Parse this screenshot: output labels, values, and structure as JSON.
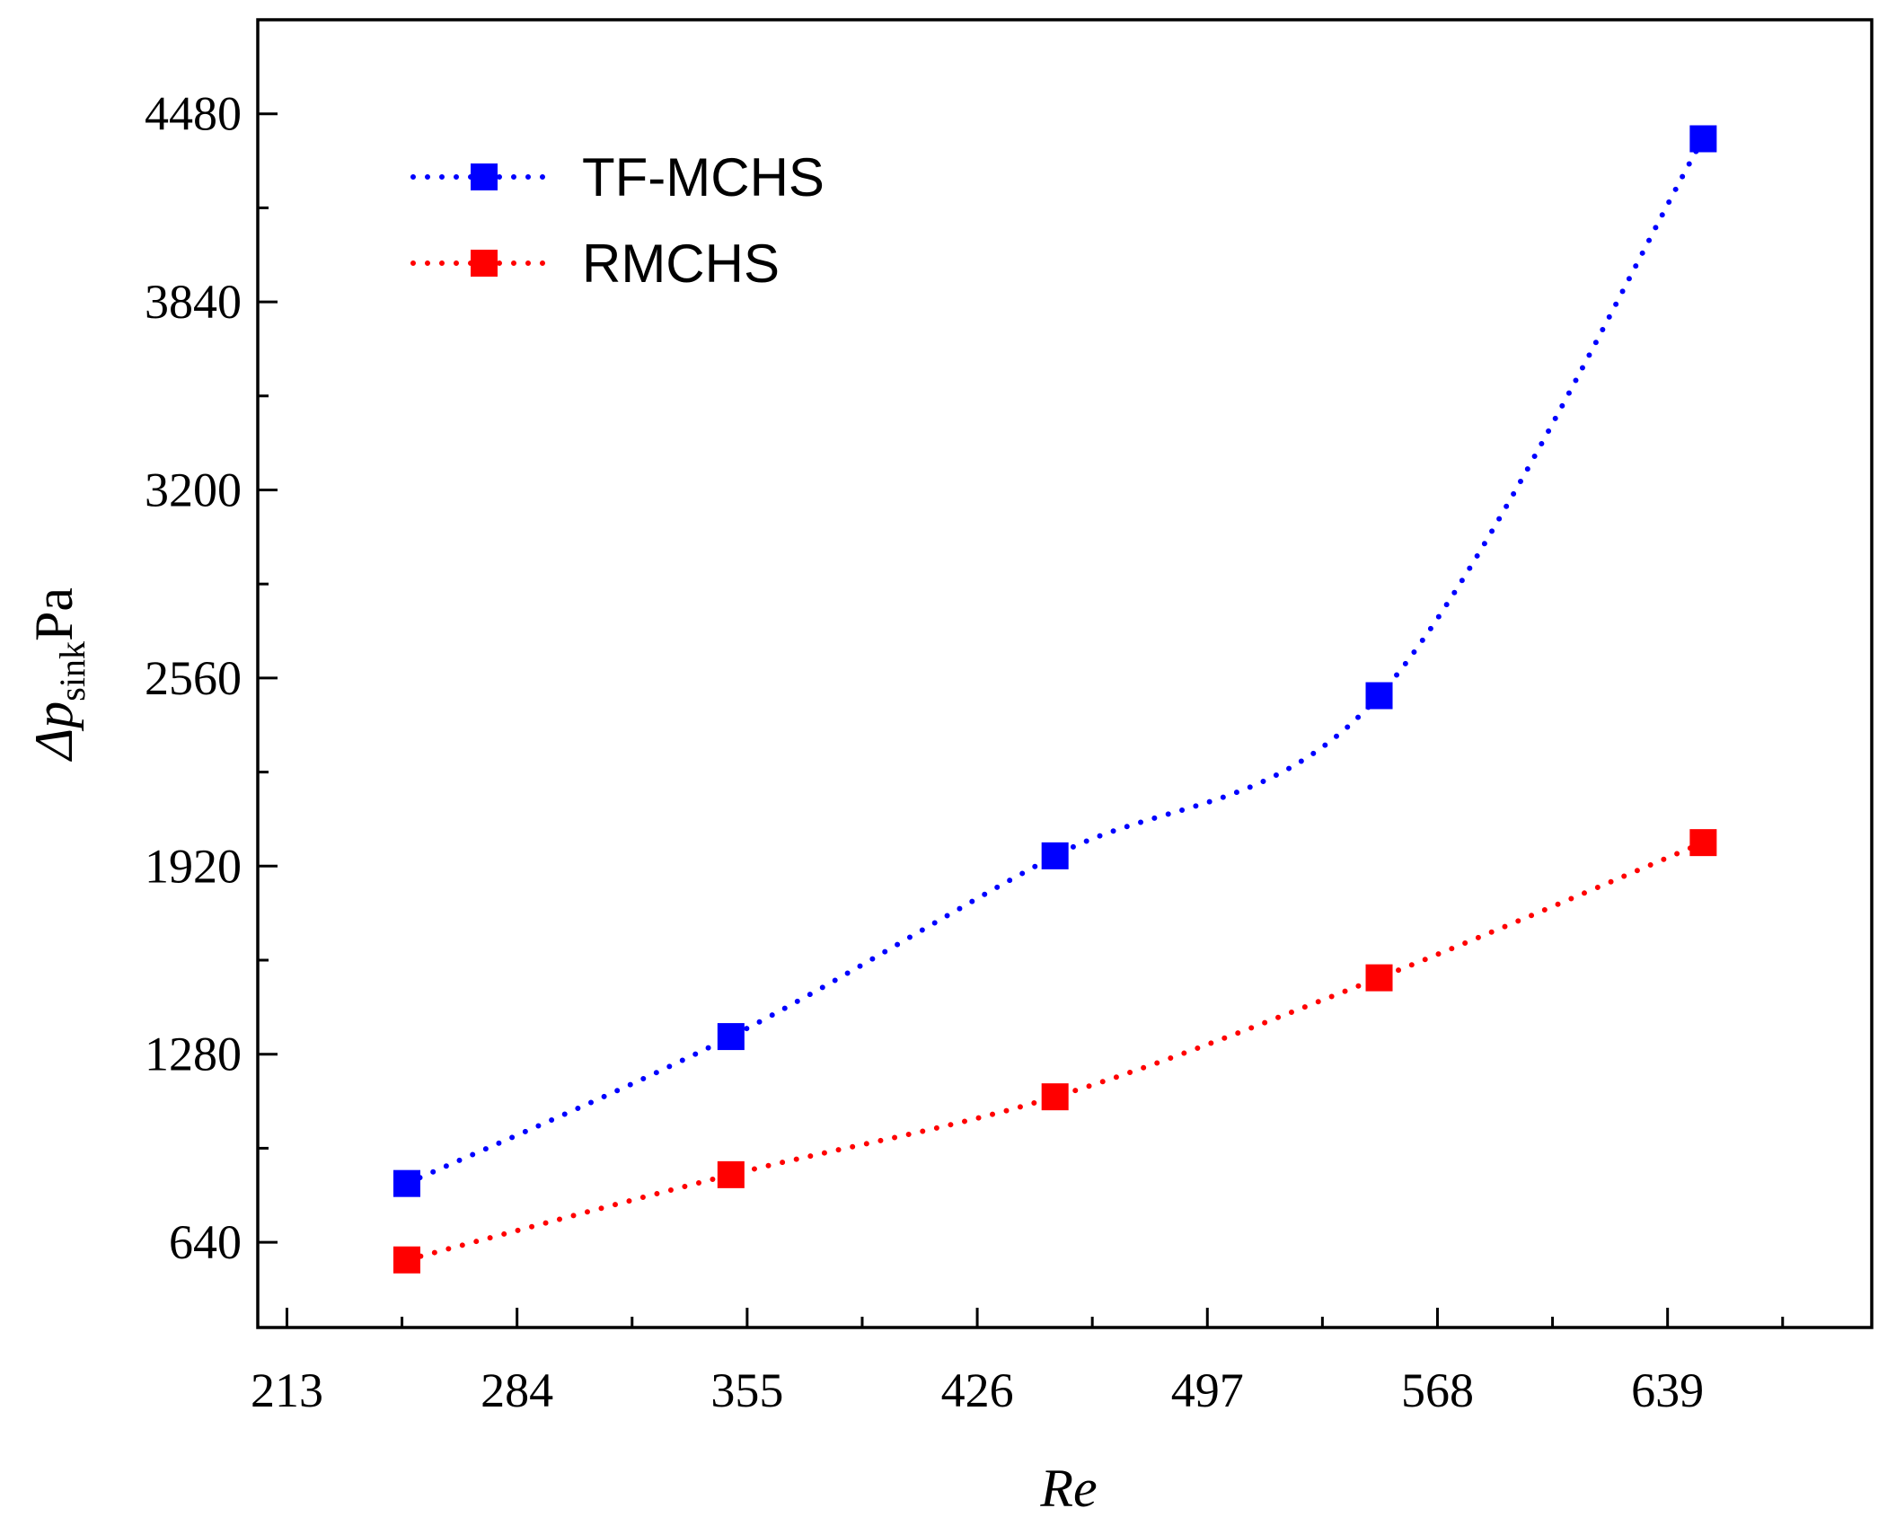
{
  "chart_data": {
    "type": "line",
    "title": "",
    "xlabel": "Re",
    "ylabel": {
      "main": "Δp",
      "sub": "sink",
      "unit": "Pa"
    },
    "xlim": [
      204,
      702
    ],
    "ylim": [
      350,
      4800
    ],
    "xticks": [
      213,
      284,
      355,
      426,
      497,
      568,
      639
    ],
    "yticks": [
      640,
      1280,
      1920,
      2560,
      3200,
      3840,
      4480
    ],
    "x": [
      250,
      350,
      450,
      550,
      650
    ],
    "legend_position": "top-left",
    "series": [
      {
        "name": "TF-MCHS",
        "color": "#0000ff",
        "values": [
          840,
          1340,
          1955,
          2500,
          4395
        ]
      },
      {
        "name": "RMCHS",
        "color": "#ff0000",
        "values": [
          580,
          870,
          1135,
          1540,
          2000
        ]
      }
    ]
  }
}
